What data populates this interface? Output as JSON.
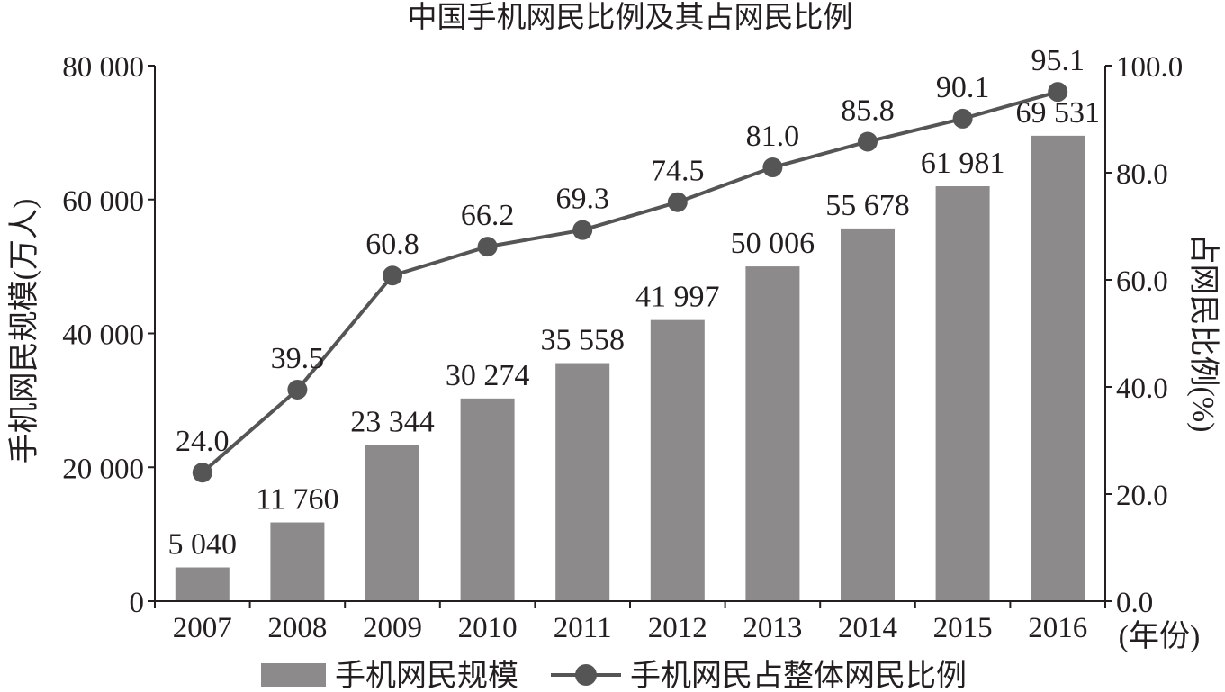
{
  "chart_data": {
    "type": "bar",
    "title": "中国手机网民比例及其占网民比例",
    "categories": [
      "2007",
      "2008",
      "2009",
      "2010",
      "2011",
      "2012",
      "2013",
      "2014",
      "2015",
      "2016"
    ],
    "series": [
      {
        "name": "手机网民规模",
        "type": "bar",
        "axis": "left",
        "values": [
          5040,
          11760,
          23344,
          30274,
          35558,
          41997,
          50006,
          55678,
          61981,
          69531
        ],
        "labels": [
          "5 040",
          "11 760",
          "23 344",
          "30 274",
          "35 558",
          "41 997",
          "50 006",
          "55 678",
          "61 981",
          "69 531"
        ],
        "color": "#8c8a8b"
      },
      {
        "name": "手机网民占整体网民比例",
        "type": "line",
        "axis": "right",
        "values": [
          24.0,
          39.5,
          60.8,
          66.2,
          69.3,
          74.5,
          81.0,
          85.8,
          90.1,
          95.1
        ],
        "labels": [
          "24.0",
          "39.5",
          "60.8",
          "66.2",
          "69.3",
          "74.5",
          "81.0",
          "85.8",
          "90.1",
          "95.1"
        ],
        "color": "#555555"
      }
    ],
    "xlabel": "(年份)",
    "ylabel": "手机网民规模(万人)",
    "y2label": "占网民比例(%)",
    "ylim": [
      0,
      80000
    ],
    "y2lim": [
      0,
      100
    ],
    "yticks": [
      0,
      20000,
      40000,
      60000,
      80000
    ],
    "ytick_labels": [
      "0",
      "20 000",
      "40 000",
      "60 000",
      "80 000"
    ],
    "y2ticks": [
      0,
      20,
      40,
      60,
      80,
      100
    ],
    "y2tick_labels": [
      "0.0",
      "20.0",
      "40.0",
      "60.0",
      "80.0",
      "100.0"
    ],
    "grid": false,
    "legend_position": "bottom"
  }
}
